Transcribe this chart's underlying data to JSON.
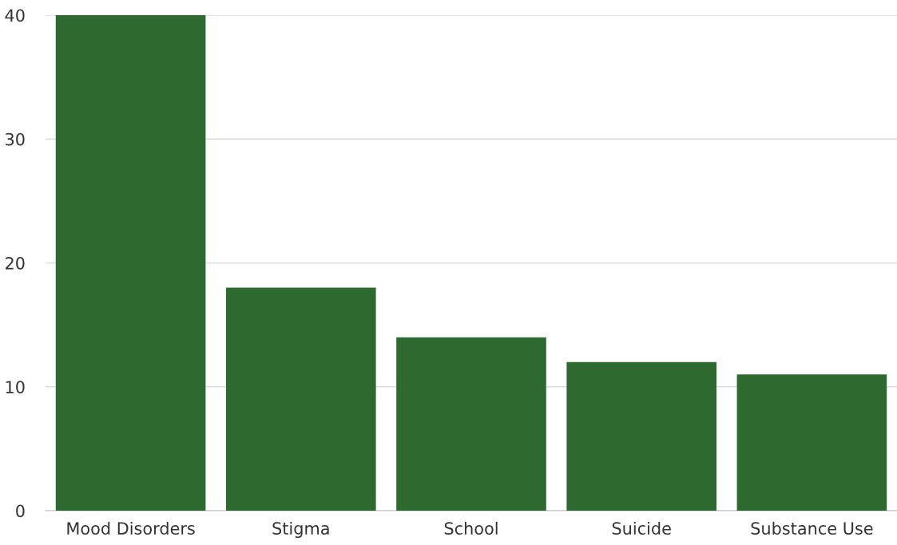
{
  "chart_data": {
    "type": "bar",
    "categories": [
      "Mood Disorders",
      "Stigma",
      "School",
      "Suicide",
      "Substance Use"
    ],
    "values": [
      40,
      18,
      14,
      12,
      11
    ],
    "color": "#2e6930",
    "ylim": [
      0,
      40
    ],
    "yticks": [
      0,
      10,
      20,
      30,
      40
    ],
    "grid": "y",
    "legend": false
  }
}
